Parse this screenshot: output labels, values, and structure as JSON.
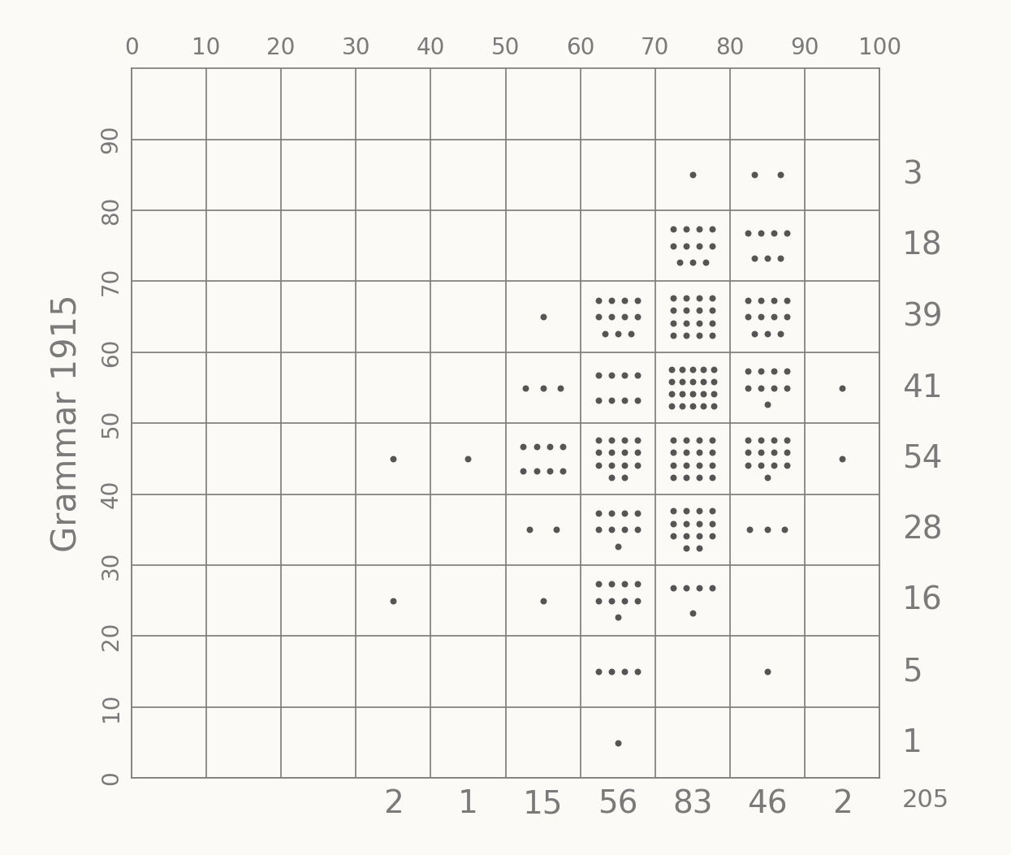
{
  "chart_data": {
    "type": "dot_table",
    "y_label": "Grammar 1915",
    "xlim": [
      0,
      100
    ],
    "xticks": [
      0,
      10,
      20,
      30,
      40,
      50,
      60,
      70,
      80,
      90,
      100
    ],
    "ylim": [
      0,
      100
    ],
    "yticks": [
      0,
      10,
      20,
      30,
      40,
      50,
      60,
      70,
      80,
      90
    ],
    "grid": true,
    "bin_width": 10,
    "cells": [
      {
        "x": 70,
        "y": 80,
        "count": 1
      },
      {
        "x": 80,
        "y": 80,
        "count": 2
      },
      {
        "x": 70,
        "y": 70,
        "count": 11
      },
      {
        "x": 80,
        "y": 70,
        "count": 7
      },
      {
        "x": 50,
        "y": 60,
        "count": 1
      },
      {
        "x": 60,
        "y": 60,
        "count": 11
      },
      {
        "x": 70,
        "y": 60,
        "count": 16
      },
      {
        "x": 80,
        "y": 60,
        "count": 11
      },
      {
        "x": 50,
        "y": 50,
        "count": 3
      },
      {
        "x": 60,
        "y": 50,
        "count": 8
      },
      {
        "x": 70,
        "y": 50,
        "count": 20
      },
      {
        "x": 80,
        "y": 50,
        "count": 9
      },
      {
        "x": 90,
        "y": 50,
        "count": 1
      },
      {
        "x": 30,
        "y": 40,
        "count": 1
      },
      {
        "x": 40,
        "y": 40,
        "count": 1
      },
      {
        "x": 50,
        "y": 40,
        "count": 8
      },
      {
        "x": 60,
        "y": 40,
        "count": 14
      },
      {
        "x": 70,
        "y": 40,
        "count": 16
      },
      {
        "x": 80,
        "y": 40,
        "count": 13
      },
      {
        "x": 90,
        "y": 40,
        "count": 1
      },
      {
        "x": 50,
        "y": 30,
        "count": 2
      },
      {
        "x": 60,
        "y": 30,
        "count": 9
      },
      {
        "x": 70,
        "y": 30,
        "count": 14
      },
      {
        "x": 80,
        "y": 30,
        "count": 3
      },
      {
        "x": 30,
        "y": 20,
        "count": 1
      },
      {
        "x": 50,
        "y": 20,
        "count": 1
      },
      {
        "x": 60,
        "y": 20,
        "count": 9
      },
      {
        "x": 70,
        "y": 20,
        "count": 5
      },
      {
        "x": 60,
        "y": 10,
        "count": 4
      },
      {
        "x": 80,
        "y": 10,
        "count": 1
      },
      {
        "x": 60,
        "y": 0,
        "count": 1
      }
    ],
    "row_totals": [
      {
        "y": 80,
        "total": 3
      },
      {
        "y": 70,
        "total": 18
      },
      {
        "y": 60,
        "total": 39
      },
      {
        "y": 50,
        "total": 41
      },
      {
        "y": 40,
        "total": 54
      },
      {
        "y": 30,
        "total": 28
      },
      {
        "y": 20,
        "total": 16
      },
      {
        "y": 10,
        "total": 5
      },
      {
        "y": 0,
        "total": 1
      }
    ],
    "column_totals": [
      {
        "x": 30,
        "total": 2
      },
      {
        "x": 40,
        "total": 1
      },
      {
        "x": 50,
        "total": 15
      },
      {
        "x": 60,
        "total": 56
      },
      {
        "x": 70,
        "total": 83
      },
      {
        "x": 80,
        "total": 46
      },
      {
        "x": 90,
        "total": 2
      }
    ],
    "grand_total": 205
  }
}
